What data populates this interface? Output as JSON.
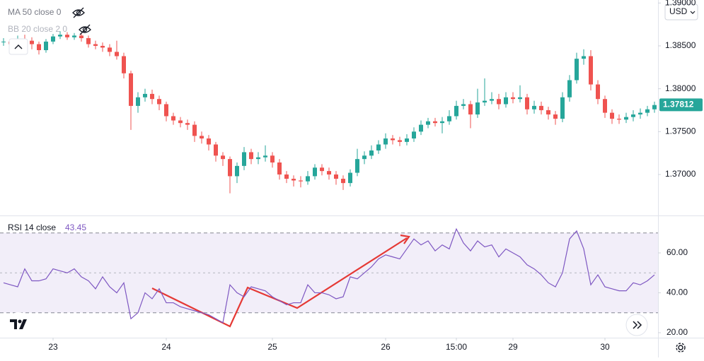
{
  "chart_data": {
    "type": "candlestick",
    "indicators": [
      "MA 50 close 0",
      "BB 20 close 2 0"
    ],
    "currency": "USD",
    "up_color": "#26a69a",
    "down_color": "#ef5350",
    "categories": [
      null,
      null,
      null,
      null,
      null,
      null,
      null,
      "23",
      null,
      null,
      null,
      null,
      null,
      null,
      null,
      null,
      null,
      null,
      null,
      null,
      null,
      null,
      null,
      "24",
      null,
      null,
      null,
      null,
      null,
      null,
      null,
      null,
      null,
      null,
      null,
      null,
      null,
      null,
      "25",
      null,
      null,
      null,
      null,
      null,
      null,
      null,
      null,
      null,
      null,
      null,
      null,
      null,
      null,
      null,
      "26",
      null,
      null,
      null,
      null,
      null,
      null,
      null,
      null,
      null,
      "15:00",
      null,
      null,
      null,
      null,
      null,
      null,
      null,
      "29",
      null,
      null,
      null,
      null,
      null,
      null,
      null,
      null,
      null,
      null,
      null,
      null,
      "30",
      null,
      null,
      null,
      null,
      null,
      null,
      null
    ],
    "close": [
      1.3855,
      1.3852,
      1.3858,
      1.3856,
      1.3852,
      1.3845,
      1.3855,
      1.3861,
      1.3863,
      1.386,
      1.3862,
      1.3859,
      1.3852,
      1.385,
      1.3848,
      1.3843,
      1.3838,
      1.3818,
      1.378,
      1.379,
      1.3794,
      1.3788,
      1.3782,
      1.3768,
      1.3763,
      1.376,
      1.3758,
      1.3745,
      1.3742,
      1.3735,
      1.3722,
      1.3718,
      1.3698,
      1.371,
      1.3726,
      1.3718,
      1.372,
      1.3722,
      1.3714,
      1.37,
      1.3695,
      1.3693,
      1.3692,
      1.3698,
      1.3708,
      1.3704,
      1.37,
      1.3695,
      1.369,
      1.3702,
      1.3718,
      1.3722,
      1.3728,
      1.3735,
      1.3742,
      1.374,
      1.3738,
      1.3742,
      1.375,
      1.3758,
      1.3762,
      1.376,
      1.3762,
      1.3768,
      1.378,
      1.3782,
      1.377,
      1.3784,
      1.3786,
      1.3788,
      1.3782,
      1.379,
      1.3788,
      1.379,
      1.3776,
      1.378,
      1.3775,
      1.377,
      1.3765,
      1.379,
      1.381,
      1.3835,
      1.3838,
      1.3805,
      1.3788,
      1.3772,
      1.3765,
      1.3764,
      1.3767,
      1.377,
      1.3772,
      1.3776,
      1.3781
    ],
    "high": [
      1.3859,
      1.3858,
      1.3862,
      1.3863,
      1.386,
      1.3855,
      1.3858,
      1.3864,
      1.3867,
      1.3866,
      1.3865,
      1.3864,
      1.3862,
      1.3856,
      1.3854,
      1.3852,
      1.3856,
      1.3842,
      1.3821,
      1.3796,
      1.38,
      1.3799,
      1.3792,
      1.3785,
      1.3772,
      1.3767,
      1.3764,
      1.3762,
      1.375,
      1.3746,
      1.3738,
      1.3726,
      1.3721,
      1.3714,
      1.3732,
      1.373,
      1.3726,
      1.3734,
      1.3726,
      1.3718,
      1.3704,
      1.3699,
      1.3698,
      1.3704,
      1.3712,
      1.3712,
      1.3708,
      1.3704,
      1.3699,
      1.3706,
      1.373,
      1.3727,
      1.3734,
      1.374,
      1.3748,
      1.3746,
      1.3744,
      1.3747,
      1.3755,
      1.3763,
      1.3766,
      1.3766,
      1.3767,
      1.3775,
      1.3786,
      1.3788,
      1.3786,
      1.38,
      1.3812,
      1.3796,
      1.3794,
      1.3796,
      1.3796,
      1.3804,
      1.3794,
      1.3786,
      1.3785,
      1.3779,
      1.3774,
      1.3796,
      1.3816,
      1.3842,
      1.3846,
      1.3845,
      1.381,
      1.3792,
      1.3776,
      1.377,
      1.3772,
      1.3775,
      1.3777,
      1.378,
      1.3785
    ],
    "low": [
      1.385,
      1.3848,
      1.3849,
      1.3852,
      1.3846,
      1.384,
      1.3842,
      1.3852,
      1.3858,
      1.3857,
      1.3857,
      1.3855,
      1.3848,
      1.3846,
      1.3843,
      1.3838,
      1.3834,
      1.3812,
      1.3752,
      1.3772,
      1.3785,
      1.3782,
      1.3775,
      1.3762,
      1.3758,
      1.3755,
      1.3752,
      1.3738,
      1.3736,
      1.3728,
      1.3715,
      1.371,
      1.3678,
      1.369,
      1.3705,
      1.3712,
      1.3712,
      1.3715,
      1.3708,
      1.3694,
      1.369,
      1.3686,
      1.3685,
      1.3688,
      1.3694,
      1.3699,
      1.3694,
      1.3688,
      1.3682,
      1.3686,
      1.3698,
      1.3712,
      1.3718,
      1.3724,
      1.373,
      1.3735,
      1.3733,
      1.3734,
      1.3738,
      1.3746,
      1.3754,
      1.3756,
      1.3748,
      1.3758,
      1.3764,
      1.3776,
      1.3754,
      1.3766,
      1.378,
      1.3782,
      1.3776,
      1.3778,
      1.3783,
      1.3784,
      1.377,
      1.3771,
      1.377,
      1.3764,
      1.3758,
      1.3761,
      1.3785,
      1.3806,
      1.3828,
      1.3798,
      1.3782,
      1.3766,
      1.3759,
      1.3759,
      1.376,
      1.3762,
      1.3765,
      1.3768,
      1.3772
    ],
    "ylim": [
      1.36522,
      1.39035
    ],
    "yticks": [
      {
        "value": 1.37,
        "label": "1.37000"
      },
      {
        "value": 1.375,
        "label": "1.37500"
      },
      {
        "value": 1.38,
        "label": "1.38000"
      },
      {
        "value": 1.385,
        "label": "1.38500"
      },
      {
        "value": 1.39,
        "label": "1.39000"
      }
    ],
    "last_price": 1.37812,
    "rsi": {
      "title": "RSI 14 close",
      "value": 43.45,
      "color": "#7e57c2",
      "values": [
        45,
        44,
        43,
        52,
        46,
        46,
        47,
        52,
        51,
        50,
        52,
        48,
        46,
        42,
        48,
        43,
        40,
        45,
        27,
        30,
        40,
        37,
        42,
        35,
        35,
        33,
        32,
        31,
        30,
        29,
        27,
        25,
        44,
        40,
        38,
        43,
        42,
        41,
        38,
        36,
        34,
        35,
        35,
        44,
        40,
        40,
        39,
        37,
        38,
        48,
        47,
        50,
        53,
        57,
        59,
        58,
        57,
        62,
        67,
        64,
        66,
        61,
        64,
        62,
        72,
        65,
        61,
        66,
        63,
        64,
        58,
        62,
        60,
        58,
        54,
        52,
        49,
        45,
        43,
        50,
        67,
        71,
        62,
        44,
        49,
        43,
        42,
        41,
        41,
        45,
        44,
        46,
        49
      ],
      "ylim": [
        17.5,
        78.76
      ],
      "yticks": [
        {
          "value": 20,
          "label": "20.00"
        },
        {
          "value": 40,
          "label": "40.00"
        },
        {
          "value": 60,
          "label": "60.00"
        }
      ],
      "levels": [
        30,
        50,
        70
      ]
    }
  }
}
